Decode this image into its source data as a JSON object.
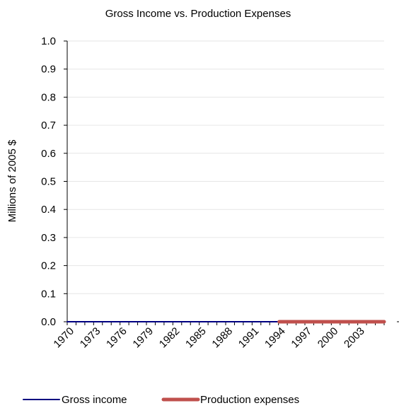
{
  "chart_data": {
    "type": "line",
    "title": "Gross Income vs. Production Expenses",
    "xlabel": "",
    "ylabel": "Millions of 2005 $",
    "ylim": [
      0,
      1.0
    ],
    "y_ticks": [
      "0.0",
      "0.1",
      "0.2",
      "0.3",
      "0.4",
      "0.5",
      "0.6",
      "0.7",
      "0.8",
      "0.9",
      "1.0"
    ],
    "categories": [
      1970,
      1971,
      1972,
      1973,
      1974,
      1975,
      1976,
      1977,
      1978,
      1979,
      1980,
      1981,
      1982,
      1983,
      1984,
      1985,
      1986,
      1987,
      1988,
      1989,
      1990,
      1991,
      1992,
      1993,
      1994,
      1995,
      1996,
      1997,
      1998,
      1999,
      2000,
      2001,
      2002,
      2003,
      2004,
      2005
    ],
    "x_tick_labels": [
      "1970",
      "1973",
      "1976",
      "1979",
      "1982",
      "1985",
      "1988",
      "1991",
      "1994",
      "1997",
      "2000",
      "2003"
    ],
    "grid": true,
    "legend": "bottom",
    "series": [
      {
        "name": "Gross income",
        "color": "#000080",
        "values": [
          0,
          0,
          0,
          0,
          0,
          0,
          0,
          0,
          0,
          0,
          0,
          0,
          0,
          0,
          0,
          0,
          0,
          0,
          0,
          0,
          0,
          0,
          0,
          0,
          0,
          0,
          0,
          0,
          0,
          0,
          0,
          0,
          0,
          0,
          0,
          0
        ]
      },
      {
        "name": "Production expenses",
        "color": "#c0504d",
        "values": [
          null,
          null,
          null,
          null,
          null,
          null,
          null,
          null,
          null,
          null,
          null,
          null,
          null,
          null,
          null,
          null,
          null,
          null,
          null,
          null,
          null,
          null,
          null,
          null,
          0,
          0,
          0,
          0,
          0,
          0,
          0,
          0,
          0,
          0,
          0,
          0
        ]
      }
    ]
  }
}
